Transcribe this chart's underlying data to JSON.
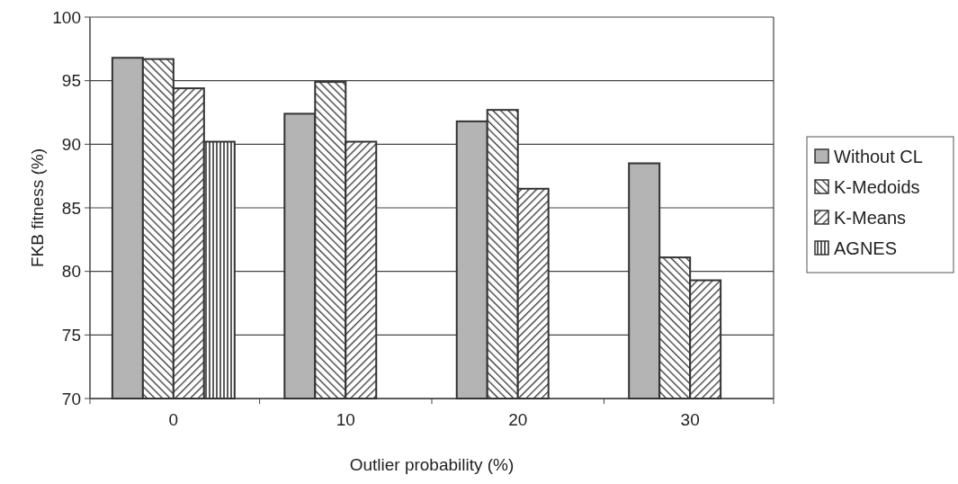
{
  "chart_data": {
    "type": "bar",
    "xlabel": "Outlier probability (%)",
    "ylabel": "FKB fitness (%)",
    "categories": [
      "0",
      "10",
      "20",
      "30"
    ],
    "series": [
      {
        "name": "Without CL",
        "color": "#b4b4b4",
        "values": [
          96.8,
          92.4,
          91.8,
          88.5
        ]
      },
      {
        "name": "K-Medoids",
        "color": "#333333",
        "values": [
          96.7,
          94.9,
          92.7,
          81.1
        ]
      },
      {
        "name": "K-Means",
        "color": "#333333",
        "values": [
          94.4,
          90.2,
          86.5,
          79.3
        ]
      },
      {
        "name": "AGNES",
        "color": "#333333",
        "values": [
          90.2,
          null,
          null,
          null
        ]
      }
    ],
    "ylim": [
      70,
      100
    ],
    "yticks": [
      70,
      75,
      80,
      85,
      90,
      95,
      100
    ],
    "grid": "y",
    "legend": "right"
  }
}
